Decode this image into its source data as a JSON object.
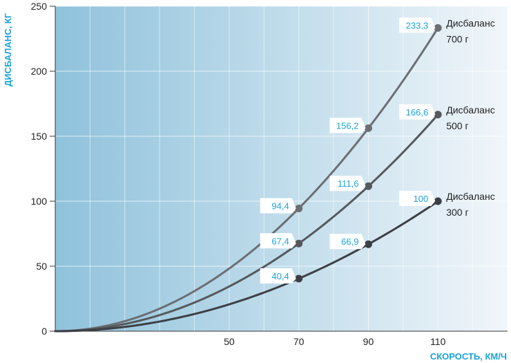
{
  "chart_data": {
    "type": "line",
    "title": "",
    "xlabel": "СКОРОСТЬ, КМ/Ч",
    "ylabel": "ДИСБАЛАНС, КГ",
    "xlim": [
      0,
      130
    ],
    "ylim": [
      0,
      250
    ],
    "x_tick_labels": [
      "50",
      "70",
      "90",
      "110"
    ],
    "x_ticks": [
      50,
      70,
      90,
      110
    ],
    "y_ticks": [
      0,
      50,
      100,
      150,
      200,
      250
    ],
    "y_tick_labels": [
      "0",
      "50",
      "100",
      "150",
      "200",
      "250"
    ],
    "grid": true,
    "series": [
      {
        "label_line1": "Дисбаланс",
        "label_line2": "700 г",
        "color": "#6b6e73",
        "x": [
          70,
          90,
          110
        ],
        "values": [
          94.4,
          156.2,
          233.3
        ],
        "value_labels": [
          "94,4",
          "156,2",
          "233,3"
        ]
      },
      {
        "label_line1": "Дисбаланс",
        "label_line2": "500 г",
        "color": "#55585d",
        "x": [
          70,
          90,
          110
        ],
        "values": [
          67.4,
          111.6,
          166.6
        ],
        "value_labels": [
          "67,4",
          "111,6",
          "166,6"
        ]
      },
      {
        "label_line1": "Дисбаланс",
        "label_line2": "300 г",
        "color": "#3c3f44",
        "x": [
          70,
          90,
          110
        ],
        "values": [
          40.4,
          66.9,
          100
        ],
        "value_labels": [
          "40,4",
          "66,9",
          "100"
        ]
      }
    ]
  },
  "colors": {
    "gradient_start": "#8fc2dc",
    "gradient_end": "#f1f6fa",
    "accent": "#1aa3d9"
  }
}
